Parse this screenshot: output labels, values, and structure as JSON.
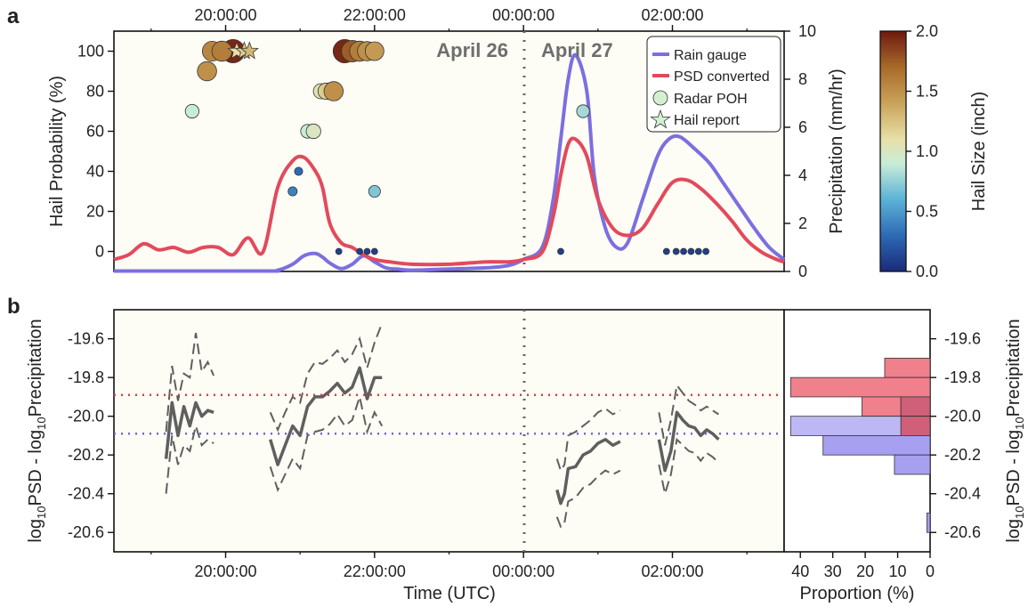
{
  "figure": {
    "panel_a_letter": "a",
    "panel_b_letter": "b",
    "date_left": "April 26",
    "date_right": "April 27"
  },
  "colors": {
    "rain_gauge": "#7b6fe0",
    "psd_converted": "#e24a5c",
    "background": "#fdfcf5",
    "axis": "#111111",
    "log_line": "#5f5f5f",
    "red_ref": "#e23c3c",
    "blue_ref": "#6b66e0",
    "hist_red": "#f0808c",
    "hist_blue": "#a79ff0",
    "hist_overlap": "#d0607a"
  },
  "chart_data": [
    {
      "id": "panel-a",
      "type": "line",
      "x_unit": "hours after 00:00:00 UTC April 26 (negative = April 26)",
      "xlim": [
        -3.0,
        3.5
      ],
      "top_ticks": [
        "20:00:00",
        "22:00:00",
        "00:00:00",
        "02:00:00"
      ],
      "top_tick_positions": [
        -4.0,
        -2.0,
        0.0,
        2.0
      ],
      "ylabel_left": "Hail Probability (%)",
      "ylim_left": [
        -10,
        110
      ],
      "yticks_left": [
        0,
        20,
        40,
        60,
        80,
        100
      ],
      "ylabel_right": "Precipitation (mm/hr)",
      "ylim_right": [
        0,
        10
      ],
      "yticks_right": [
        0,
        2,
        4,
        6,
        8,
        10
      ],
      "colorbar": {
        "label": "Hail Size (inch)",
        "range": [
          0,
          2
        ],
        "ticks": [
          "0.0",
          "0.5",
          "1.0",
          "1.5",
          "2.0"
        ],
        "tick_values": [
          0,
          0.5,
          1.0,
          1.5,
          2.0
        ]
      },
      "legend": {
        "placement": "top-right",
        "items": [
          "Rain gauge",
          "PSD converted",
          "Radar POH",
          "Hail report"
        ]
      },
      "series": [
        {
          "name": "Rain gauge",
          "x": [
            -5.5,
            -3.5,
            -3.3,
            -3.1,
            -2.95,
            -2.8,
            -2.7,
            -2.6,
            -2.45,
            -2.3,
            -2.15,
            -2.0,
            -1.85,
            -1.7,
            -1.5,
            -1.0,
            -0.5,
            -0.2,
            0.0,
            0.25,
            0.4,
            0.5,
            0.6,
            0.7,
            0.85,
            0.95,
            1.1,
            1.25,
            1.4,
            1.6,
            1.8,
            1.95,
            2.1,
            2.3,
            2.5,
            2.7,
            2.9,
            3.1,
            3.3,
            3.5
          ],
          "y": [
            0.02,
            0.02,
            0.05,
            0.3,
            0.65,
            0.75,
            0.6,
            0.35,
            0.12,
            0.3,
            0.65,
            0.4,
            0.15,
            0.1,
            0.05,
            0.1,
            0.15,
            0.25,
            0.5,
            1.0,
            3.0,
            5.5,
            8.0,
            9.0,
            7.5,
            4.0,
            1.8,
            1.0,
            1.2,
            3.0,
            4.8,
            5.5,
            5.6,
            5.1,
            4.5,
            3.6,
            2.7,
            1.8,
            1.0,
            0.5
          ]
        },
        {
          "name": "PSD converted",
          "x": [
            -5.5,
            -5.3,
            -5.1,
            -4.9,
            -4.7,
            -4.5,
            -4.3,
            -4.1,
            -3.9,
            -3.7,
            -3.5,
            -3.3,
            -3.1,
            -2.95,
            -2.8,
            -2.7,
            -2.6,
            -2.45,
            -2.3,
            -2.15,
            -2.0,
            -1.8,
            -1.5,
            -1.0,
            -0.5,
            -0.2,
            0.0,
            0.25,
            0.4,
            0.5,
            0.6,
            0.7,
            0.85,
            1.0,
            1.2,
            1.4,
            1.6,
            1.8,
            2.0,
            2.2,
            2.4,
            2.6,
            2.8,
            3.0,
            3.2,
            3.4,
            3.5
          ],
          "y": [
            0.5,
            0.7,
            1.15,
            0.9,
            1.0,
            0.8,
            1.0,
            1.0,
            0.7,
            1.4,
            0.8,
            3.5,
            4.6,
            4.75,
            4.2,
            3.5,
            2.0,
            1.2,
            1.0,
            0.7,
            0.5,
            0.4,
            0.3,
            0.3,
            0.4,
            0.4,
            0.5,
            0.8,
            2.3,
            4.0,
            5.3,
            5.5,
            4.8,
            3.0,
            1.8,
            1.5,
            1.8,
            2.8,
            3.7,
            3.8,
            3.4,
            2.8,
            2.1,
            1.3,
            0.8,
            0.5,
            0.4
          ]
        }
      ],
      "radar_poh": [
        {
          "x": -4.45,
          "poh": 70,
          "size": 0.9
        },
        {
          "x": -4.25,
          "poh": 90,
          "size": 1.5
        },
        {
          "x": -4.18,
          "poh": 100,
          "size": 1.55
        },
        {
          "x": -3.1,
          "poh": 30,
          "size": 0.4
        },
        {
          "x": -3.02,
          "poh": 40,
          "size": 0.3
        },
        {
          "x": -2.9,
          "poh": 60,
          "size": 0.9
        },
        {
          "x": -2.82,
          "poh": 60,
          "size": 1.0
        },
        {
          "x": -2.72,
          "poh": 80,
          "size": 1.05
        },
        {
          "x": -2.65,
          "poh": 80,
          "size": 1.2
        },
        {
          "x": -2.55,
          "poh": 80,
          "size": 1.5
        },
        {
          "x": -2.4,
          "poh": 100,
          "size": 1.95
        },
        {
          "x": -2.3,
          "poh": 100,
          "size": 1.75
        },
        {
          "x": -2.2,
          "poh": 100,
          "size": 1.6
        },
        {
          "x": -2.1,
          "poh": 100,
          "size": 1.5
        },
        {
          "x": -2.0,
          "poh": 100,
          "size": 1.45
        },
        {
          "x": -2.0,
          "poh": 30,
          "size": 0.7
        },
        {
          "x": -2.48,
          "poh": 0,
          "size": 0.1
        },
        {
          "x": -2.2,
          "poh": 0,
          "size": 0.1
        },
        {
          "x": -2.1,
          "poh": 0,
          "size": 0.1
        },
        {
          "x": -2.0,
          "poh": 0,
          "size": 0.1
        },
        {
          "x": 0.5,
          "poh": 0,
          "size": 0.1
        },
        {
          "x": 0.8,
          "poh": 70,
          "size": 0.8
        },
        {
          "x": 1.92,
          "poh": 0,
          "size": 0.1
        },
        {
          "x": 2.05,
          "poh": 0,
          "size": 0.1
        },
        {
          "x": 2.15,
          "poh": 0,
          "size": 0.1
        },
        {
          "x": 2.25,
          "poh": 0,
          "size": 0.1
        },
        {
          "x": 2.35,
          "poh": 0,
          "size": 0.1
        },
        {
          "x": 2.45,
          "poh": 0,
          "size": 0.1
        },
        {
          "x": -3.9,
          "poh": 100,
          "size": 1.95
        },
        {
          "x": -4.05,
          "poh": 100,
          "size": 1.6
        }
      ],
      "hail_reports": [
        {
          "x": -3.85,
          "poh": 100,
          "size": 1.1
        },
        {
          "x": -3.75,
          "poh": 100,
          "size": 1.2
        },
        {
          "x": -3.68,
          "poh": 100,
          "size": 1.3
        }
      ]
    },
    {
      "id": "panel-b",
      "type": "line",
      "xlabel": "Time (UTC)",
      "x_unit": "hours after 00:00:00 UTC April 26",
      "xticks": [
        "20:00:00",
        "22:00:00",
        "00:00:00",
        "02:00:00"
      ],
      "xtick_positions": [
        -4.0,
        -2.0,
        0.0,
        2.0
      ],
      "ylabel": "log10PSD - log10Precipitation",
      "ylim": [
        -20.7,
        -19.45
      ],
      "yticks": [
        "-19.6",
        "-19.8",
        "-20.0",
        "-20.2",
        "-20.4",
        "-20.6"
      ],
      "ytick_values": [
        -19.6,
        -19.8,
        -20.0,
        -20.2,
        -20.4,
        -20.6
      ],
      "reference_lines": [
        {
          "color": "red",
          "y": -19.89
        },
        {
          "color": "blue",
          "y": -20.09
        }
      ],
      "segments": [
        {
          "x": [
            -4.8,
            -4.72,
            -4.64,
            -4.56,
            -4.48,
            -4.4,
            -4.32,
            -4.24,
            -4.16
          ],
          "median": [
            -20.22,
            -19.93,
            -20.1,
            -19.95,
            -20.05,
            -19.93,
            -20.0,
            -19.97,
            -19.98
          ],
          "upper": [
            -20.08,
            -19.74,
            -19.92,
            -19.78,
            -19.8,
            -19.57,
            -19.77,
            -19.72,
            -19.79
          ],
          "lower": [
            -20.4,
            -20.1,
            -20.25,
            -20.15,
            -20.18,
            -20.05,
            -20.15,
            -20.12,
            -20.14
          ]
        },
        {
          "x": [
            -3.4,
            -3.3,
            -3.2,
            -3.1,
            -3.0,
            -2.9,
            -2.8,
            -2.7,
            -2.6,
            -2.5,
            -2.4,
            -2.3,
            -2.2,
            -2.1,
            -2.0,
            -1.9
          ],
          "median": [
            -20.12,
            -20.25,
            -20.15,
            -20.05,
            -20.1,
            -19.95,
            -19.9,
            -19.9,
            -19.87,
            -19.83,
            -19.88,
            -19.85,
            -19.75,
            -19.91,
            -19.8,
            -19.8
          ],
          "upper": [
            -19.98,
            -20.07,
            -19.98,
            -19.9,
            -19.93,
            -19.78,
            -19.72,
            -19.73,
            -19.7,
            -19.66,
            -19.72,
            -19.68,
            -19.6,
            -19.75,
            -19.62,
            -19.52
          ],
          "lower": [
            -20.26,
            -20.38,
            -20.3,
            -20.22,
            -20.27,
            -20.1,
            -20.08,
            -20.07,
            -20.04,
            -19.99,
            -20.05,
            -20.02,
            -19.9,
            -20.08,
            -19.98,
            -20.05
          ]
        },
        {
          "x": [
            0.45,
            0.5,
            0.55,
            0.6,
            0.7,
            0.8,
            0.9,
            1.0,
            1.1,
            1.2,
            1.3
          ],
          "median": [
            -20.38,
            -20.45,
            -20.4,
            -20.27,
            -20.26,
            -20.2,
            -20.18,
            -20.14,
            -20.12,
            -20.15,
            -20.13
          ],
          "upper": [
            -20.22,
            -20.28,
            -20.25,
            -20.1,
            -20.08,
            -20.05,
            -20.02,
            -19.98,
            -19.96,
            -19.99,
            -19.97
          ],
          "lower": [
            -20.52,
            -20.57,
            -20.55,
            -20.44,
            -20.42,
            -20.37,
            -20.35,
            -20.31,
            -20.28,
            -20.3,
            -20.28
          ]
        },
        {
          "x": [
            1.82,
            1.9,
            1.98,
            2.06,
            2.14,
            2.22,
            2.3,
            2.38,
            2.46,
            2.54,
            2.62
          ],
          "median": [
            -20.12,
            -20.28,
            -20.18,
            -19.98,
            -20.02,
            -20.05,
            -20.06,
            -20.1,
            -20.07,
            -20.09,
            -20.12
          ],
          "upper": [
            -19.98,
            -20.15,
            -20.02,
            -19.84,
            -19.88,
            -19.92,
            -19.94,
            -19.97,
            -19.95,
            -19.97,
            -19.99
          ],
          "lower": [
            -20.25,
            -20.4,
            -20.3,
            -20.12,
            -20.15,
            -20.18,
            -20.19,
            -20.23,
            -20.19,
            -20.21,
            -20.24
          ]
        }
      ]
    },
    {
      "id": "panel-b-histogram",
      "type": "bar",
      "orientation": "horizontal",
      "xlabel": "Proportion (%)",
      "xticks": [
        "40",
        "30",
        "20",
        "10",
        "0"
      ],
      "xtick_values": [
        40,
        30,
        20,
        10,
        0
      ],
      "xlim": [
        45,
        0
      ],
      "ylabel": "log10PSD - log10Precipitation",
      "yticks": [
        "-19.6",
        "-19.8",
        "-20.0",
        "-20.2",
        "-20.4",
        "-20.6"
      ],
      "ytick_values": [
        -19.6,
        -19.8,
        -20.0,
        -20.2,
        -20.4,
        -20.6
      ],
      "bin_width": 0.1,
      "bins": [
        -19.75,
        -19.85,
        -19.95,
        -20.05,
        -20.15,
        -20.25,
        -20.35,
        -20.45,
        -20.55,
        -20.65
      ],
      "series": [
        {
          "name": "PSD converted",
          "values": [
            14,
            43,
            21,
            9,
            0,
            0,
            0,
            0,
            0,
            0
          ]
        },
        {
          "name": "Rain gauge",
          "values": [
            0,
            0,
            9,
            43,
            33,
            11,
            0,
            0,
            1,
            0
          ]
        }
      ]
    }
  ]
}
